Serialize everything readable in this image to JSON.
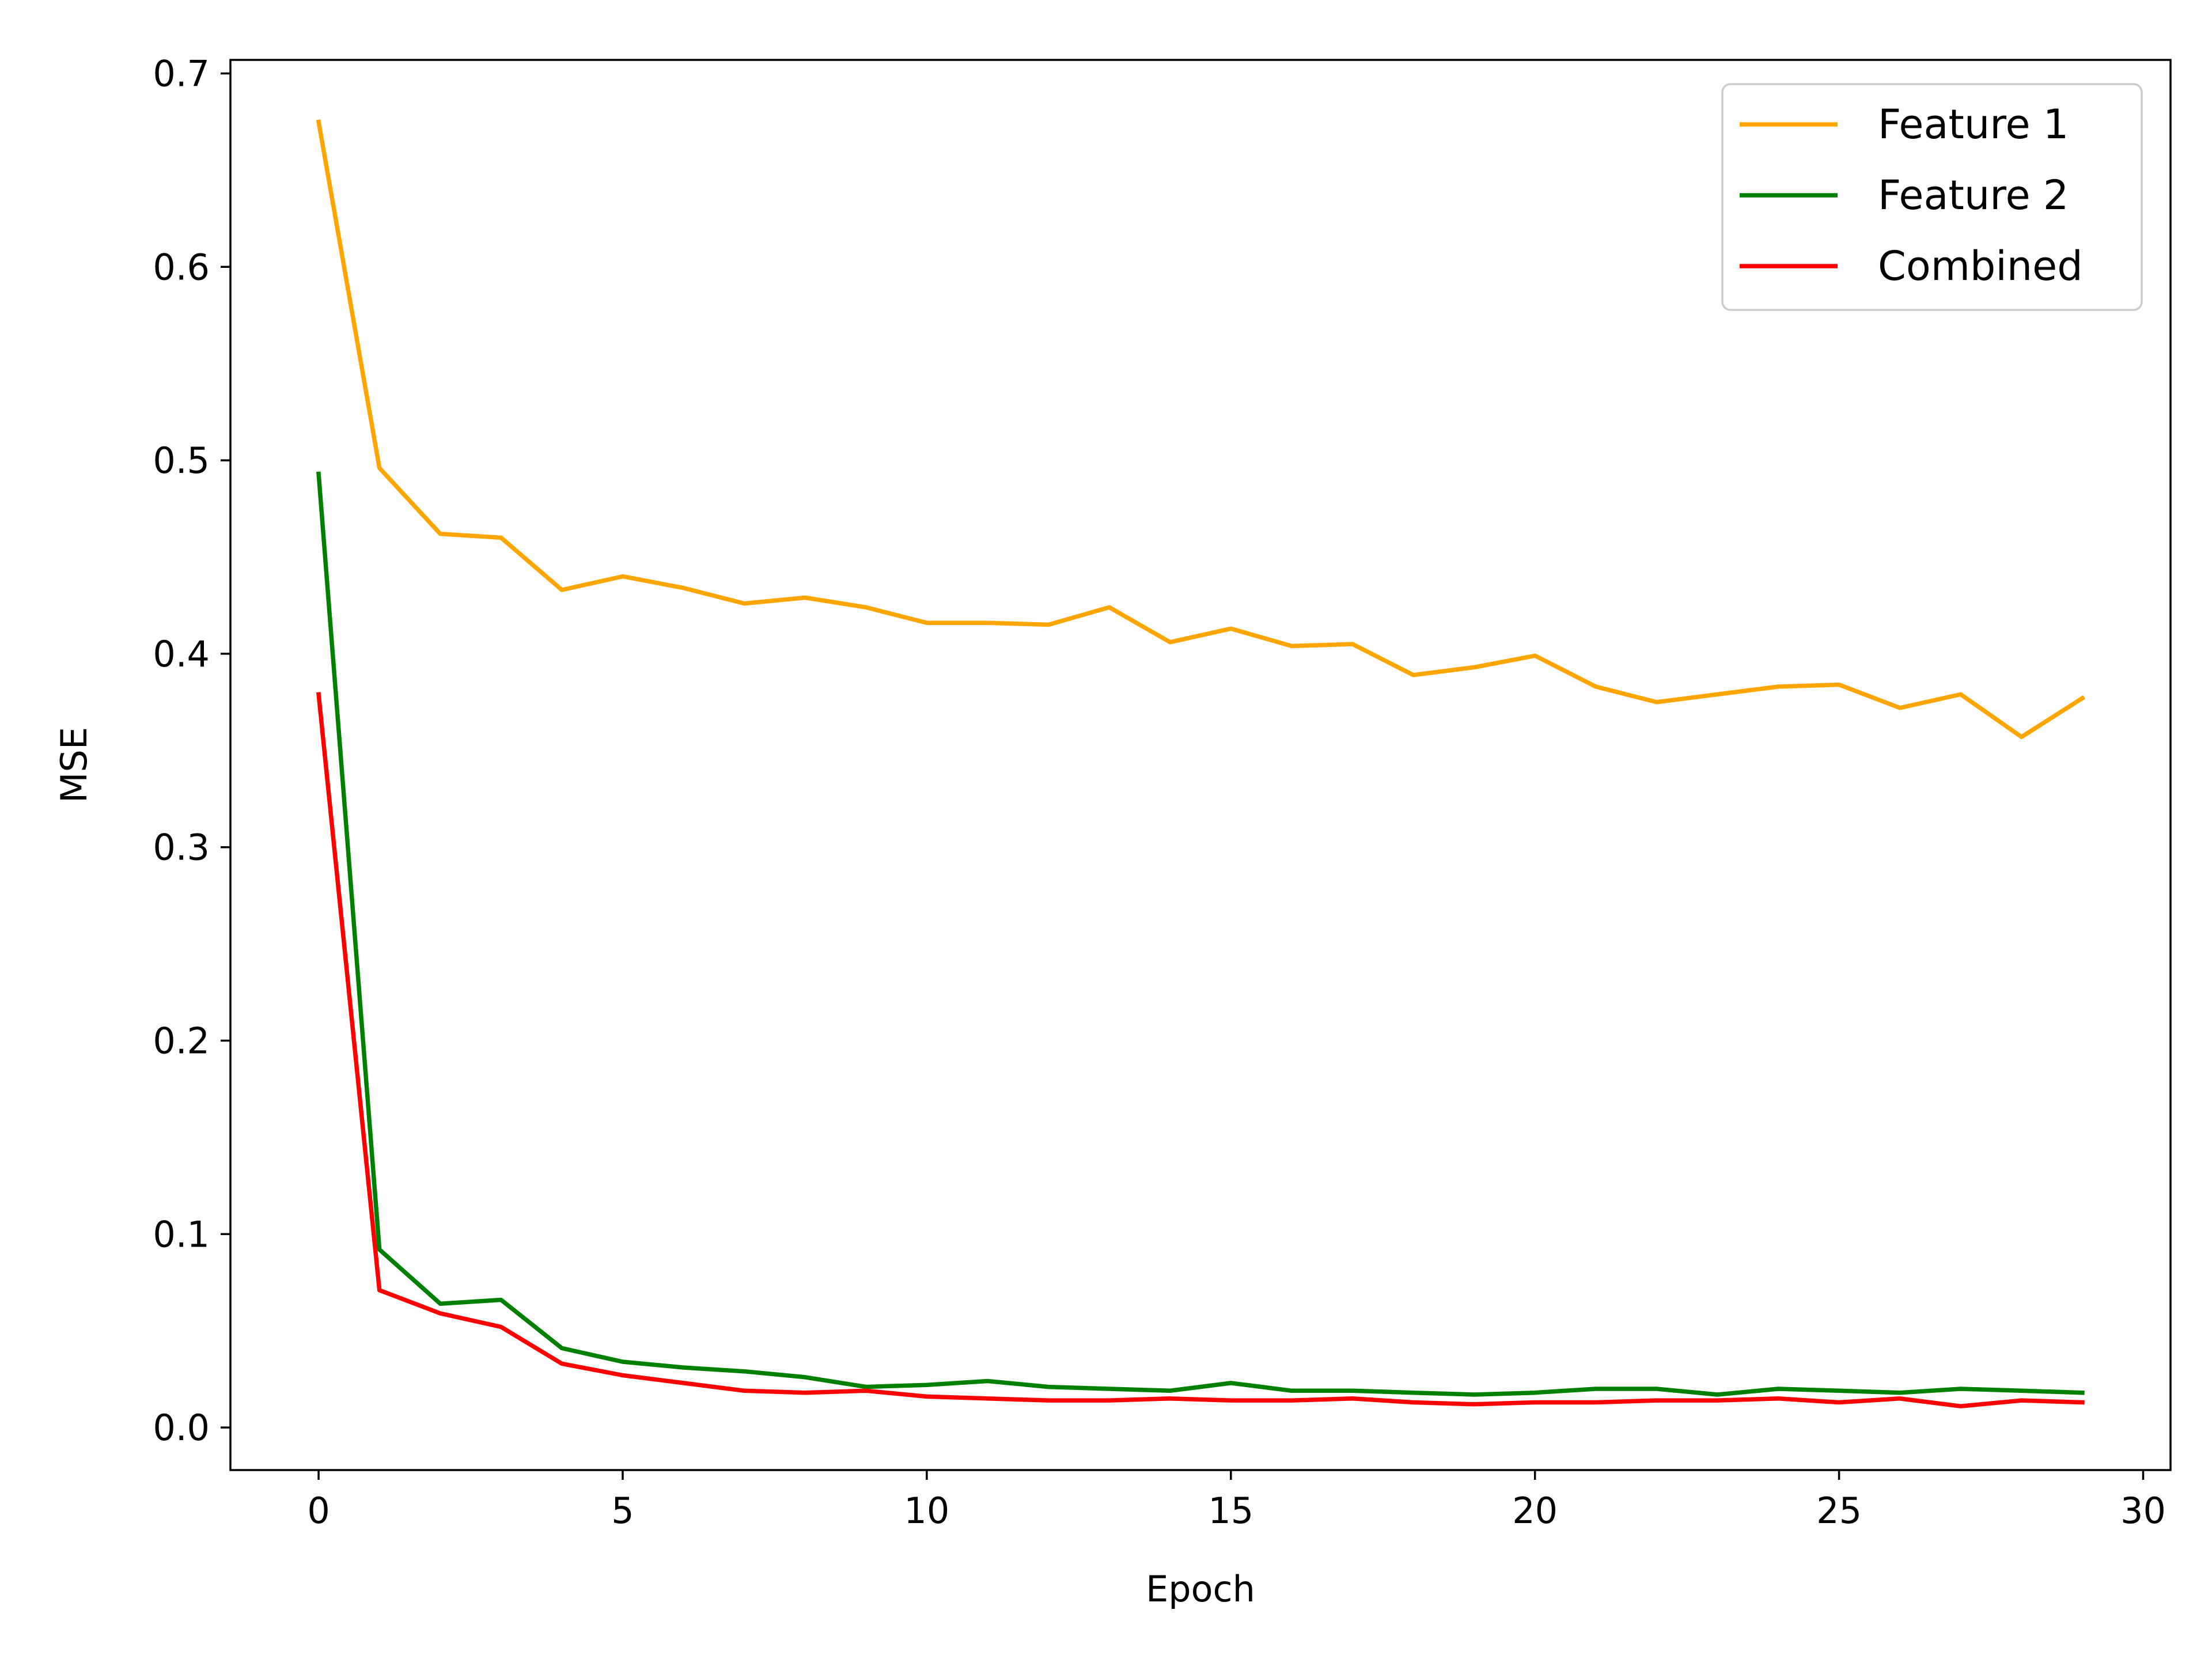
{
  "chart_data": {
    "type": "line",
    "xlabel": "Epoch",
    "ylabel": "MSE",
    "xlim": [
      -1.45,
      30.45
    ],
    "ylim": [
      -0.022,
      0.707
    ],
    "xticks": [
      0,
      5,
      10,
      15,
      20,
      25,
      30
    ],
    "yticks": [
      0.0,
      0.1,
      0.2,
      0.3,
      0.4,
      0.5,
      0.6,
      0.7
    ],
    "xtick_labels": [
      "0",
      "5",
      "10",
      "15",
      "20",
      "25",
      "30"
    ],
    "ytick_labels": [
      "0.0",
      "0.1",
      "0.2",
      "0.3",
      "0.4",
      "0.5",
      "0.6",
      "0.7"
    ],
    "grid": false,
    "legend_position": "top-right",
    "x": [
      0,
      1,
      2,
      3,
      4,
      5,
      6,
      7,
      8,
      9,
      10,
      11,
      12,
      13,
      14,
      15,
      16,
      17,
      18,
      19,
      20,
      21,
      22,
      23,
      24,
      25,
      26,
      27,
      28,
      29
    ],
    "series": [
      {
        "name": "Feature 1",
        "color": "#ffa500",
        "values": [
          0.675,
          0.496,
          0.462,
          0.46,
          0.433,
          0.44,
          0.434,
          0.426,
          0.429,
          0.424,
          0.416,
          0.416,
          0.415,
          0.424,
          0.406,
          0.413,
          0.404,
          0.405,
          0.389,
          0.393,
          0.399,
          0.383,
          0.375,
          0.379,
          0.383,
          0.384,
          0.372,
          0.379,
          0.357,
          0.377
        ]
      },
      {
        "name": "Feature 2",
        "color": "#008000",
        "values": [
          0.493,
          0.092,
          0.064,
          0.066,
          0.041,
          0.034,
          0.031,
          0.029,
          0.026,
          0.021,
          0.022,
          0.024,
          0.021,
          0.02,
          0.019,
          0.023,
          0.019,
          0.019,
          0.018,
          0.017,
          0.018,
          0.02,
          0.02,
          0.017,
          0.02,
          0.019,
          0.018,
          0.02,
          0.019,
          0.018
        ]
      },
      {
        "name": "Combined",
        "color": "#ff0000",
        "values": [
          0.379,
          0.071,
          0.059,
          0.052,
          0.033,
          0.027,
          0.023,
          0.019,
          0.018,
          0.019,
          0.016,
          0.015,
          0.014,
          0.014,
          0.015,
          0.014,
          0.014,
          0.015,
          0.013,
          0.012,
          0.013,
          0.013,
          0.014,
          0.014,
          0.015,
          0.013,
          0.015,
          0.011,
          0.014,
          0.013
        ]
      }
    ]
  }
}
